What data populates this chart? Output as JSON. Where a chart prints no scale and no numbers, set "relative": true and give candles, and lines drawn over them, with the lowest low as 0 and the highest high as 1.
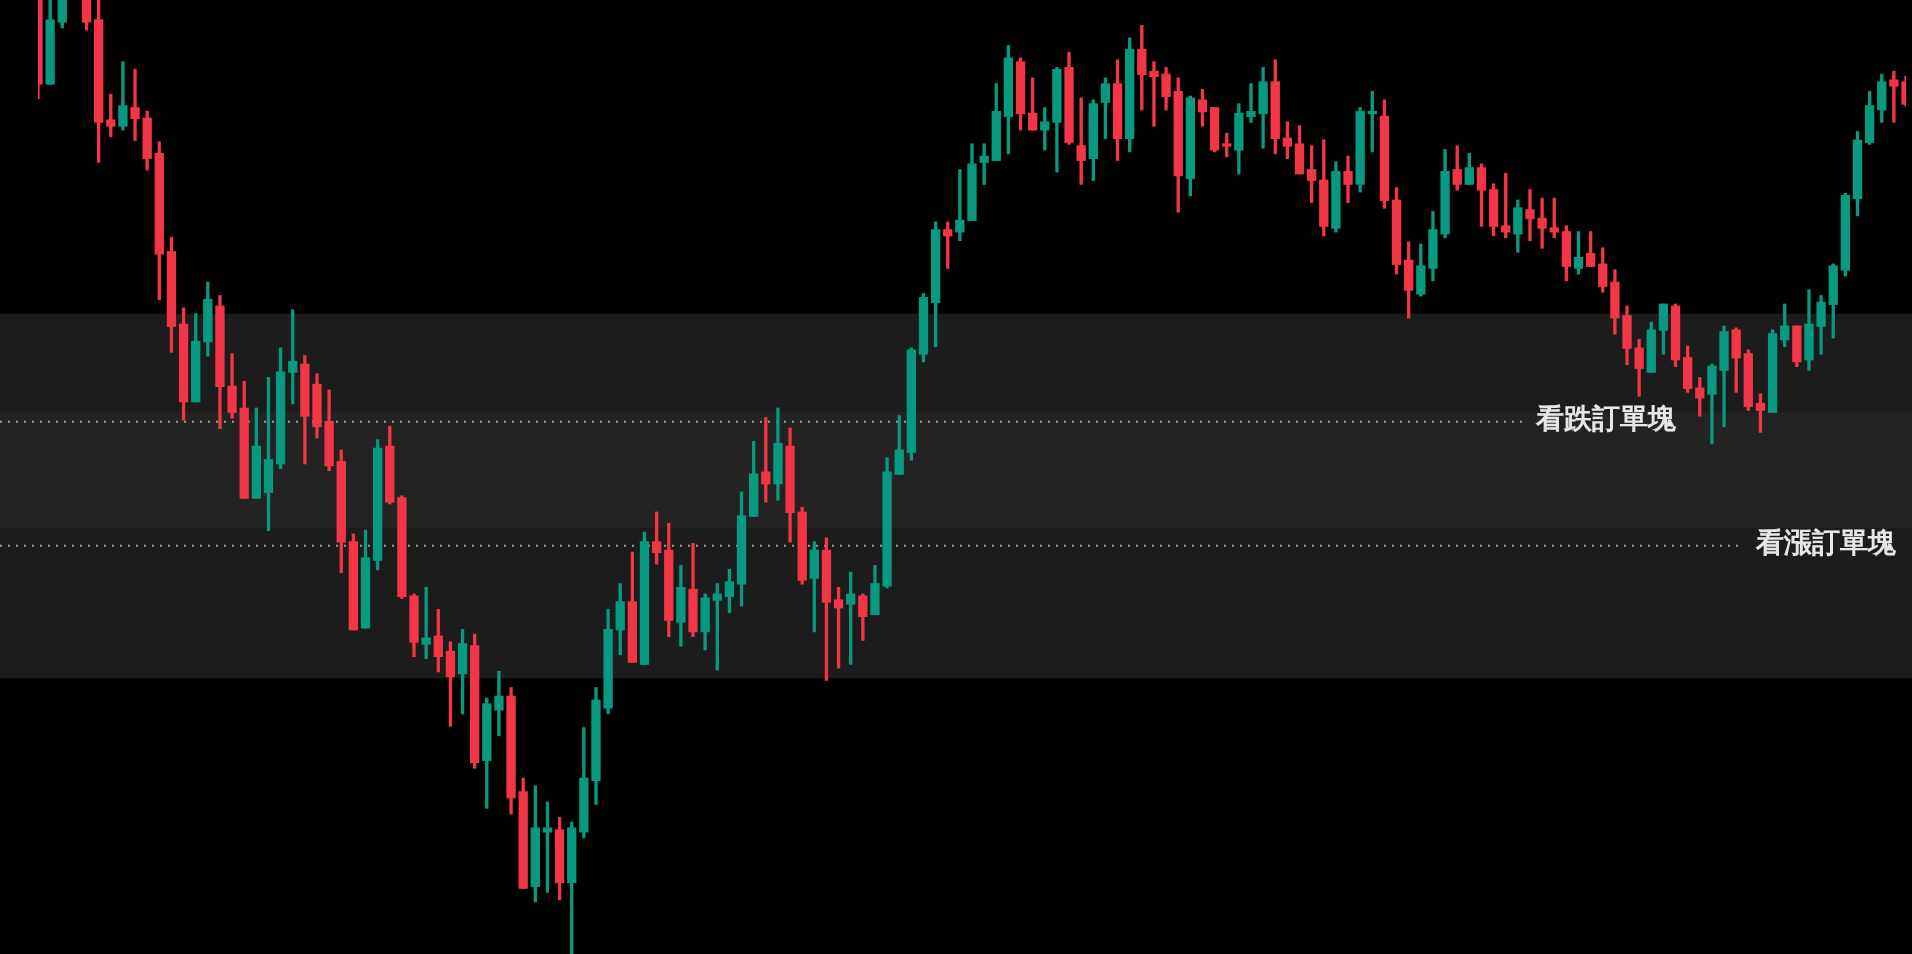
{
  "chart_data": {
    "type": "candlestick",
    "relative": true,
    "categories": [
      null,
      null,
      null,
      null,
      null,
      null,
      null,
      null,
      null,
      null,
      null,
      null,
      null,
      null,
      null,
      null,
      null,
      null,
      null,
      null,
      null,
      null,
      null,
      null,
      null,
      null,
      null,
      null,
      null,
      null,
      null,
      null,
      null,
      null,
      null,
      null,
      null,
      null,
      null,
      null,
      null,
      null,
      null,
      null,
      null,
      null,
      null,
      null,
      null,
      null,
      null,
      null,
      null,
      null,
      null,
      null,
      null,
      null,
      null,
      null,
      null,
      null,
      null,
      null,
      null,
      null,
      null,
      null,
      null,
      null,
      null,
      null,
      null,
      null,
      null,
      null,
      null,
      null,
      null,
      null,
      null,
      null,
      null,
      null,
      null,
      null,
      null,
      null,
      null,
      null,
      null,
      null,
      null,
      null,
      null,
      null,
      null,
      null,
      null,
      null,
      null,
      null,
      null,
      null,
      null,
      null,
      null,
      null,
      null,
      null,
      null,
      null,
      null,
      null,
      null,
      null,
      null,
      null,
      null,
      null,
      null,
      null,
      null,
      null,
      null,
      null,
      null,
      null,
      null,
      null,
      null,
      null,
      null,
      null,
      null,
      null,
      null,
      null,
      null,
      null,
      null,
      null,
      null,
      null,
      null,
      null,
      null,
      null,
      null,
      null,
      null,
      null,
      null,
      null,
      null
    ],
    "ohlc": [
      [
        1,
        1,
        0.897,
        0.912
      ],
      [
        0.912,
        1,
        0.912,
        0.979
      ],
      [
        0.977,
        1,
        0.971,
        1
      ],
      null,
      [
        1,
        1,
        0.969,
        0.977
      ],
      [
        0.979,
        1,
        0.83,
        0.872
      ],
      [
        0.874,
        0.901,
        0.857,
        0.868
      ],
      [
        0.868,
        0.935,
        0.864,
        0.889
      ],
      [
        0.887,
        0.927,
        0.853,
        0.876
      ],
      [
        0.876,
        0.883,
        0.822,
        0.834
      ],
      [
        0.839,
        0.851,
        0.686,
        0.734
      ],
      [
        0.736,
        0.751,
        0.631,
        0.658
      ],
      [
        0.66,
        0.677,
        0.56,
        0.579
      ],
      [
        0.579,
        0.671,
        0.579,
        0.642
      ],
      [
        0.642,
        0.704,
        0.627,
        0.686
      ],
      [
        0.679,
        0.69,
        0.551,
        0.595
      ],
      [
        0.595,
        0.629,
        0.562,
        0.568
      ],
      [
        0.572,
        0.6,
        0.478,
        0.478
      ],
      [
        0.478,
        0.572,
        0.478,
        0.532
      ],
      [
        0.484,
        0.604,
        0.444,
        0.518
      ],
      [
        0.514,
        0.635,
        0.509,
        0.61
      ],
      [
        0.61,
        0.675,
        0.577,
        0.621
      ],
      [
        0.618,
        0.627,
        0.514,
        0.564
      ],
      [
        0.597,
        0.608,
        0.541,
        0.553
      ],
      [
        0.558,
        0.591,
        0.507,
        0.512
      ],
      [
        0.516,
        0.528,
        0.4,
        0.432
      ],
      [
        0.432,
        0.44,
        0.34,
        0.34
      ],
      [
        0.342,
        0.444,
        0.342,
        0.415
      ],
      [
        0.413,
        0.539,
        0.403,
        0.53
      ],
      [
        0.532,
        0.553,
        0.472,
        0.474
      ],
      [
        0.478,
        0.48,
        0.373,
        0.375
      ],
      [
        0.375,
        0.377,
        0.312,
        0.327
      ],
      [
        0.325,
        0.384,
        0.31,
        0.331
      ],
      [
        0.333,
        0.361,
        0.296,
        0.312
      ],
      [
        0.317,
        0.327,
        0.239,
        0.291
      ],
      [
        0.294,
        0.34,
        0.252,
        0.325
      ],
      [
        0.323,
        0.335,
        0.195,
        0.201
      ],
      [
        0.203,
        0.268,
        0.153,
        0.262
      ],
      [
        0.256,
        0.296,
        0.229,
        0.27
      ],
      [
        0.27,
        0.279,
        0.147,
        0.164
      ],
      [
        0.17,
        0.184,
        0.069,
        0.069
      ],
      [
        0.071,
        0.176,
        0.055,
        0.132
      ],
      [
        0.128,
        0.159,
        0.065,
        0.132
      ],
      [
        0.13,
        0.143,
        0.057,
        0.075
      ],
      [
        0.075,
        0.138,
        0,
        0.132
      ],
      [
        0.128,
        0.237,
        0.122,
        0.184
      ],
      [
        0.182,
        0.279,
        0.157,
        0.266
      ],
      [
        0.258,
        0.361,
        0.252,
        0.34
      ],
      [
        0.34,
        0.388,
        0.314,
        0.369
      ],
      [
        0.369,
        0.421,
        0.306,
        0.306
      ],
      [
        0.304,
        0.442,
        0.304,
        0.432
      ],
      [
        0.432,
        0.463,
        0.409,
        0.421
      ],
      [
        0.423,
        0.451,
        0.333,
        0.35
      ],
      [
        0.348,
        0.407,
        0.323,
        0.384
      ],
      [
        0.382,
        0.43,
        0.333,
        0.338
      ],
      [
        0.338,
        0.377,
        0.319,
        0.373
      ],
      [
        0.371,
        0.388,
        0.298,
        0.377
      ],
      [
        0.375,
        0.403,
        0.358,
        0.39
      ],
      [
        0.388,
        0.484,
        0.365,
        0.459
      ],
      [
        0.459,
        0.537,
        0.459,
        0.503
      ],
      [
        0.505,
        0.562,
        0.474,
        0.493
      ],
      [
        0.493,
        0.572,
        0.476,
        0.535
      ],
      [
        0.532,
        0.551,
        0.432,
        0.463
      ],
      [
        0.463,
        0.468,
        0.388,
        0.392
      ],
      [
        0.394,
        0.432,
        0.338,
        0.423
      ],
      [
        0.423,
        0.436,
        0.287,
        0.369
      ],
      [
        0.371,
        0.384,
        0.3,
        0.363
      ],
      [
        0.367,
        0.4,
        0.304,
        0.377
      ],
      [
        0.375,
        0.377,
        0.329,
        0.354
      ],
      [
        0.356,
        0.407,
        0.356,
        0.388
      ],
      [
        0.386,
        0.52,
        0.384,
        0.505
      ],
      [
        0.503,
        0.564,
        0.503,
        0.528
      ],
      [
        0.526,
        0.635,
        0.518,
        0.633
      ],
      [
        0.629,
        0.692,
        0.621,
        0.688
      ],
      [
        0.683,
        0.767,
        0.637,
        0.759
      ],
      [
        0.759,
        0.767,
        0.719,
        0.753
      ],
      [
        0.757,
        0.822,
        0.748,
        0.769
      ],
      [
        0.769,
        0.849,
        0.769,
        0.828
      ],
      [
        0.83,
        0.849,
        0.807,
        0.836
      ],
      [
        0.832,
        0.912,
        0.832,
        0.883
      ],
      [
        0.878,
        0.952,
        0.839,
        0.939
      ],
      [
        0.935,
        0.939,
        0.864,
        0.881
      ],
      [
        0.881,
        0.918,
        0.864,
        0.864
      ],
      [
        0.864,
        0.887,
        0.843,
        0.872
      ],
      [
        0.872,
        0.929,
        0.82,
        0.927
      ],
      [
        0.929,
        0.945,
        0.849,
        0.851
      ],
      [
        0.847,
        0.897,
        0.807,
        0.832
      ],
      [
        0.834,
        0.895,
        0.811,
        0.891
      ],
      [
        0.893,
        0.918,
        0.855,
        0.912
      ],
      [
        0.912,
        0.937,
        0.832,
        0.855
      ],
      [
        0.855,
        0.96,
        0.841,
        0.948
      ],
      [
        0.948,
        0.973,
        0.885,
        0.922
      ],
      [
        0.925,
        0.935,
        0.868,
        0.92
      ],
      [
        0.922,
        0.929,
        0.885,
        0.899
      ],
      [
        0.904,
        0.918,
        0.778,
        0.816
      ],
      [
        0.813,
        0.899,
        0.795,
        0.897
      ],
      [
        0.895,
        0.906,
        0.868,
        0.883
      ],
      [
        0.887,
        0.887,
        0.841,
        0.843
      ],
      [
        0.847,
        0.86,
        0.836,
        0.847
      ],
      [
        0.843,
        0.891,
        0.818,
        0.881
      ],
      [
        0.878,
        0.912,
        0.872,
        0.883
      ],
      [
        0.881,
        0.929,
        0.845,
        0.914
      ],
      [
        0.914,
        0.937,
        0.839,
        0.855
      ],
      [
        0.855,
        0.872,
        0.834,
        0.847
      ],
      [
        0.849,
        0.868,
        0.818,
        0.818
      ],
      [
        0.822,
        0.847,
        0.788,
        0.811
      ],
      [
        0.811,
        0.853,
        0.753,
        0.763
      ],
      [
        0.761,
        0.83,
        0.757,
        0.82
      ],
      [
        0.82,
        0.836,
        0.788,
        0.807
      ],
      [
        0.807,
        0.887,
        0.799,
        0.883
      ],
      [
        0.881,
        0.904,
        0.841,
        0.881
      ],
      [
        0.878,
        0.895,
        0.782,
        0.79
      ],
      [
        0.79,
        0.803,
        0.713,
        0.723
      ],
      [
        0.727,
        0.746,
        0.667,
        0.696
      ],
      [
        0.692,
        0.744,
        0.69,
        0.721
      ],
      [
        0.719,
        0.778,
        0.706,
        0.759
      ],
      [
        0.755,
        0.843,
        0.751,
        0.82
      ],
      [
        0.822,
        0.847,
        0.801,
        0.807
      ],
      [
        0.807,
        0.839,
        0.807,
        0.824
      ],
      [
        0.824,
        0.828,
        0.763,
        0.801
      ],
      [
        0.801,
        0.807,
        0.753,
        0.763
      ],
      [
        0.763,
        0.818,
        0.751,
        0.757
      ],
      [
        0.755,
        0.79,
        0.736,
        0.782
      ],
      [
        0.78,
        0.801,
        0.748,
        0.771
      ],
      [
        0.771,
        0.792,
        0.74,
        0.761
      ],
      [
        0.761,
        0.792,
        0.751,
        0.757
      ],
      [
        0.757,
        0.763,
        0.706,
        0.721
      ],
      [
        0.719,
        0.757,
        0.713,
        0.73
      ],
      [
        0.734,
        0.757,
        0.721,
        0.721
      ],
      [
        0.723,
        0.74,
        0.694,
        0.7
      ],
      [
        0.704,
        0.717,
        0.65,
        0.667
      ],
      [
        0.669,
        0.679,
        0.618,
        0.635
      ],
      [
        0.635,
        0.644,
        0.585,
        0.614
      ],
      [
        0.61,
        0.662,
        0.61,
        0.654
      ],
      [
        0.654,
        0.681,
        0.629,
        0.681
      ],
      [
        0.679,
        0.681,
        0.616,
        0.623
      ],
      [
        0.625,
        0.637,
        0.589,
        0.593
      ],
      [
        0.593,
        0.604,
        0.564,
        0.583
      ],
      [
        0.587,
        0.618,
        0.535,
        0.616
      ],
      [
        0.612,
        0.658,
        0.553,
        0.652
      ],
      [
        0.654,
        0.656,
        0.589,
        0.625
      ],
      [
        0.629,
        0.633,
        0.57,
        0.574
      ],
      [
        0.577,
        0.587,
        0.547,
        0.57
      ],
      [
        0.568,
        0.654,
        0.568,
        0.65
      ],
      [
        0.644,
        0.681,
        0.637,
        0.658
      ],
      [
        0.658,
        0.658,
        0.616,
        0.621
      ],
      [
        0.623,
        0.696,
        0.612,
        0.66
      ],
      [
        0.658,
        0.69,
        0.629,
        0.683
      ],
      [
        0.681,
        0.723,
        0.646,
        0.721
      ],
      [
        0.717,
        0.797,
        0.711,
        0.795
      ],
      [
        0.792,
        0.862,
        0.774,
        0.853
      ],
      [
        0.851,
        0.904,
        0.849,
        0.889
      ],
      [
        0.885,
        0.922,
        0.872,
        0.914
      ],
      [
        0.916,
        0.925,
        0.872,
        0.91
      ],
      [
        0.914,
        0.92,
        0.889,
        0.891
      ]
    ],
    "colors": [
      "#f23645",
      "#089981",
      "#089981",
      null,
      "#f23645",
      "#f23645",
      "#f23645",
      "#089981",
      "#f23645",
      "#f23645",
      "#f23645",
      "#f23645",
      "#f23645",
      "#089981",
      "#089981",
      "#f23645",
      "#f23645",
      "#f23645",
      "#089981",
      "#089981",
      "#089981",
      "#089981",
      "#f23645",
      "#f23645",
      "#f23645",
      "#f23645",
      "#f23645",
      "#089981",
      "#089981",
      "#f23645",
      "#f23645",
      "#f23645",
      "#089981",
      "#f23645",
      "#f23645",
      "#089981",
      "#f23645",
      "#089981",
      "#089981",
      "#f23645",
      "#f23645",
      "#089981",
      "#089981",
      "#f23645",
      "#089981",
      "#089981",
      "#089981",
      "#089981",
      "#089981",
      "#f23645",
      "#089981",
      "#f23645",
      "#f23645",
      "#089981",
      "#f23645",
      "#089981",
      "#089981",
      "#089981",
      "#089981",
      "#089981",
      "#f23645",
      "#089981",
      "#f23645",
      "#f23645",
      "#089981",
      "#f23645",
      "#f23645",
      "#089981",
      "#f23645",
      "#089981",
      "#089981",
      "#089981",
      "#089981",
      "#089981",
      "#089981",
      "#f23645",
      "#089981",
      "#089981",
      "#089981",
      "#089981",
      "#089981",
      "#f23645",
      "#f23645",
      "#089981",
      "#089981",
      "#f23645",
      "#f23645",
      "#089981",
      "#089981",
      "#f23645",
      "#089981",
      "#f23645",
      "#f23645",
      "#f23645",
      "#f23645",
      "#089981",
      "#f23645",
      "#f23645",
      "#f23645",
      "#089981",
      "#089981",
      "#089981",
      "#f23645",
      "#f23645",
      "#f23645",
      "#f23645",
      "#f23645",
      "#089981",
      "#f23645",
      "#089981",
      "#089981",
      "#f23645",
      "#f23645",
      "#f23645",
      "#089981",
      "#089981",
      "#089981",
      "#f23645",
      "#089981",
      "#f23645",
      "#f23645",
      "#f23645",
      "#089981",
      "#f23645",
      "#f23645",
      "#f23645",
      "#f23645",
      "#089981",
      "#f23645",
      "#f23645",
      "#f23645",
      "#f23645",
      "#f23645",
      "#089981",
      "#089981",
      "#f23645",
      "#f23645",
      "#f23645",
      "#089981",
      "#089981",
      "#f23645",
      "#f23645",
      "#f23645",
      "#089981",
      "#089981",
      "#f23645",
      "#089981",
      "#089981",
      "#089981",
      "#089981",
      "#089981",
      "#089981",
      "#089981",
      "#f23645",
      "#f23645"
    ],
    "bands": [
      {
        "axis": "y",
        "from": 0.447,
        "to": 0.671,
        "color": "#262626"
      },
      {
        "axis": "y",
        "from": 0.289,
        "to": 0.568,
        "color": "#262626"
      }
    ],
    "ref_lines": [
      {
        "axis": "y",
        "value": 0.559,
        "label": "看跌訂單塊",
        "color": "#9a9a9a",
        "line_style": "dotted"
      },
      {
        "axis": "y",
        "value": 0.429,
        "label": "看漲訂單塊",
        "color": "#9a9a9a",
        "line_style": "dotted"
      }
    ]
  }
}
